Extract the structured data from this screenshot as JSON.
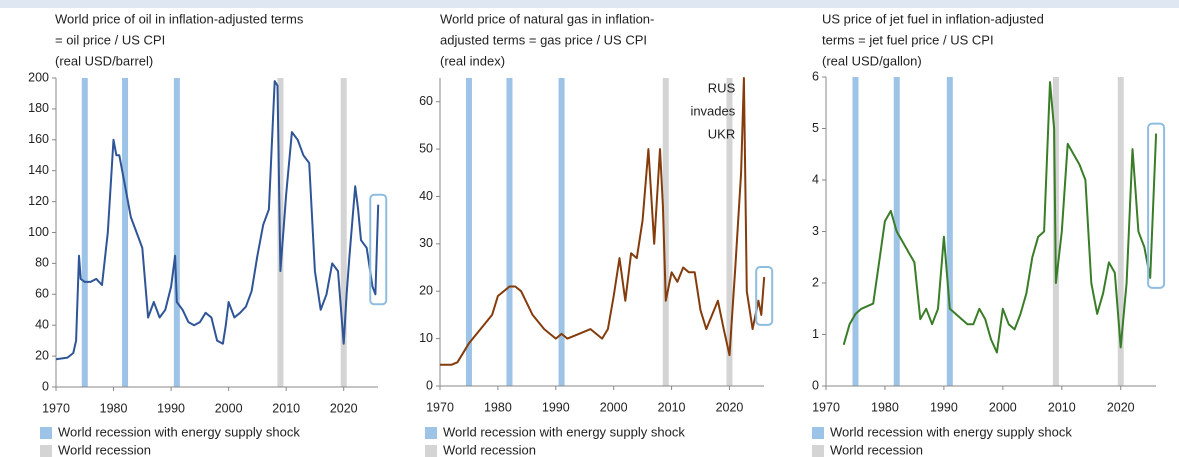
{
  "chart_data": [
    {
      "type": "line",
      "title_lines": [
        "World price of oil in inflation-adjusted terms",
        "= oil price / US CPI",
        "(real USD/barrel)"
      ],
      "color": "#2f5597",
      "x": [
        1970,
        1972,
        1973,
        1973.5,
        1974,
        1974.3,
        1975,
        1976,
        1977,
        1978,
        1979,
        1980,
        1980.5,
        1981,
        1982,
        1983,
        1984,
        1985,
        1986,
        1987,
        1988,
        1989,
        1990,
        1990.7,
        1991,
        1992,
        1993,
        1994,
        1995,
        1996,
        1997,
        1998,
        1999,
        1999.5,
        2000,
        2001,
        2002,
        2003,
        2004,
        2005,
        2006,
        2007,
        2008,
        2008.5,
        2009,
        2009.5,
        2010,
        2011,
        2012,
        2013,
        2014,
        2015,
        2016,
        2017,
        2018,
        2019,
        2020,
        2020.5,
        2021,
        2022,
        2022.5,
        2023,
        2024,
        2025,
        2025.5,
        2026
      ],
      "values": [
        18,
        19,
        22,
        30,
        85,
        70,
        68,
        68,
        70,
        66,
        100,
        160,
        150,
        150,
        130,
        110,
        100,
        90,
        45,
        55,
        45,
        50,
        65,
        85,
        55,
        50,
        42,
        40,
        42,
        48,
        45,
        30,
        28,
        40,
        55,
        45,
        48,
        52,
        62,
        85,
        105,
        115,
        198,
        195,
        75,
        100,
        125,
        165,
        160,
        150,
        145,
        75,
        50,
        60,
        80,
        75,
        28,
        60,
        85,
        130,
        115,
        95,
        90,
        65,
        60,
        118
      ],
      "xlim": [
        1970,
        2027
      ],
      "xticks": [
        1970,
        1980,
        1990,
        2000,
        2010,
        2020
      ],
      "ylim": [
        0,
        200
      ],
      "yticks": [
        0,
        20,
        40,
        60,
        80,
        100,
        120,
        140,
        160,
        180,
        200
      ],
      "recessions": [
        {
          "name": "World recession with energy supply shock",
          "color": "#9dc3e6",
          "x": [
            1975,
            1982,
            1991
          ]
        },
        {
          "name": "World recession",
          "color": "#d4d4d4",
          "x": [
            2009,
            2020
          ]
        }
      ]
    },
    {
      "type": "line",
      "title_lines": [
        "World price of natural gas in inflation-",
        "adjusted terms = gas price / US CPI",
        "(real index)"
      ],
      "annotation_lines": [
        "RUS",
        "invades",
        "UKR"
      ],
      "color": "#843c0c",
      "x": [
        1970,
        1972,
        1973,
        1974,
        1975,
        1977,
        1979,
        1980,
        1982,
        1983,
        1984,
        1986,
        1988,
        1990,
        1991,
        1992,
        1994,
        1996,
        1997,
        1998,
        1999,
        2000,
        2001,
        2002,
        2003,
        2004,
        2005,
        2006,
        2007,
        2008,
        2008.5,
        2009,
        2010,
        2011,
        2012,
        2013,
        2014,
        2015,
        2016,
        2017,
        2018,
        2019,
        2020,
        2021,
        2022,
        2022.5,
        2023,
        2024,
        2025,
        2025.5,
        2026
      ],
      "values": [
        4.5,
        4.5,
        5,
        7,
        9,
        12,
        15,
        19,
        21,
        21,
        20,
        15,
        12,
        10,
        11,
        10,
        11,
        12,
        11,
        10,
        12,
        19,
        27,
        18,
        28,
        27,
        35,
        50,
        30,
        50,
        38,
        18,
        24,
        22,
        25,
        24,
        24,
        16,
        12,
        15,
        18,
        12,
        6.5,
        25,
        45,
        65,
        20,
        12,
        18,
        15,
        23
      ],
      "xlim": [
        1970,
        2027
      ],
      "xticks": [
        1970,
        1980,
        1990,
        2000,
        2010,
        2020
      ],
      "ylim": [
        0,
        65
      ],
      "yticks": [
        0,
        10,
        20,
        30,
        40,
        50,
        60
      ],
      "recessions": [
        {
          "name": "World recession with energy supply shock",
          "color": "#9dc3e6",
          "x": [
            1975,
            1982,
            1991
          ]
        },
        {
          "name": "World recession",
          "color": "#d4d4d4",
          "x": [
            2009,
            2020
          ]
        }
      ]
    },
    {
      "type": "line",
      "title_lines": [
        "US price of jet fuel in inflation-adjusted",
        "terms = jet fuel price / US CPI",
        "(real USD/gallon)"
      ],
      "color": "#3a7d28",
      "x": [
        1973,
        1974,
        1975,
        1976,
        1977,
        1978,
        1979,
        1980,
        1981,
        1982,
        1983,
        1984,
        1985,
        1986,
        1987,
        1988,
        1989,
        1990,
        1991,
        1992,
        1993,
        1994,
        1995,
        1996,
        1997,
        1998,
        1999,
        2000,
        2001,
        2002,
        2003,
        2004,
        2005,
        2006,
        2007,
        2008,
        2008.7,
        2009,
        2010,
        2011,
        2012,
        2013,
        2014,
        2015,
        2016,
        2017,
        2018,
        2019,
        2020,
        2021,
        2022,
        2022.5,
        2023,
        2024,
        2025,
        2026
      ],
      "values": [
        0.8,
        1.2,
        1.4,
        1.5,
        1.55,
        1.6,
        2.4,
        3.2,
        3.4,
        3.0,
        2.8,
        2.6,
        2.4,
        1.3,
        1.5,
        1.2,
        1.5,
        2.9,
        1.5,
        1.4,
        1.3,
        1.2,
        1.2,
        1.5,
        1.3,
        0.9,
        0.65,
        1.5,
        1.2,
        1.1,
        1.4,
        1.8,
        2.5,
        2.9,
        3.0,
        5.9,
        5.0,
        2.0,
        3.0,
        4.7,
        4.5,
        4.3,
        4.0,
        2.0,
        1.4,
        1.8,
        2.4,
        2.2,
        0.75,
        2.0,
        4.6,
        3.8,
        3.0,
        2.7,
        2.1,
        4.9
      ],
      "xlim": [
        1970,
        2027
      ],
      "xticks": [
        1970,
        1980,
        1990,
        2000,
        2010,
        2020
      ],
      "ylim": [
        0,
        6
      ],
      "yticks": [
        0,
        1,
        2,
        3,
        4,
        5,
        6
      ],
      "recessions": [
        {
          "name": "World recession with energy supply shock",
          "color": "#9dc3e6",
          "x": [
            1975,
            1982,
            1991
          ]
        },
        {
          "name": "World recession",
          "color": "#d4d4d4",
          "x": [
            2009,
            2020
          ]
        }
      ]
    }
  ]
}
